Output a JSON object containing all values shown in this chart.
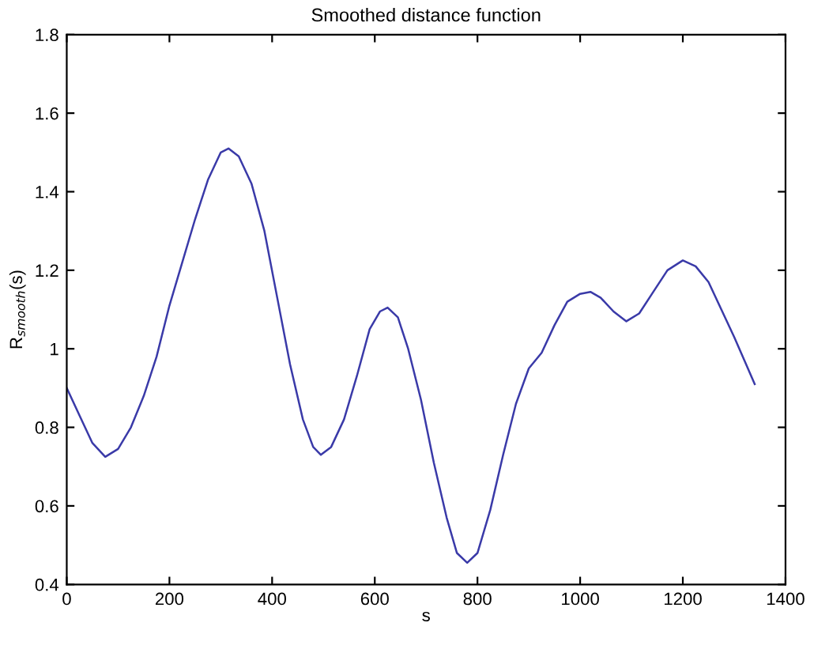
{
  "chart_data": {
    "type": "line",
    "title": "Smoothed distance function",
    "xlabel": "s",
    "ylabel": "R$_{smooth}$(s)",
    "x": [
      0,
      25,
      50,
      75,
      100,
      125,
      150,
      175,
      200,
      225,
      250,
      275,
      300,
      315,
      335,
      360,
      385,
      410,
      435,
      460,
      480,
      495,
      515,
      540,
      565,
      590,
      610,
      625,
      645,
      665,
      690,
      715,
      740,
      760,
      780,
      800,
      825,
      850,
      875,
      900,
      925,
      950,
      975,
      1000,
      1020,
      1040,
      1065,
      1090,
      1115,
      1140,
      1170,
      1200,
      1225,
      1250,
      1275,
      1300,
      1320,
      1340
    ],
    "series": [
      {
        "color": "#3a3aa8",
        "values": [
          0.9,
          0.83,
          0.76,
          0.725,
          0.745,
          0.8,
          0.88,
          0.98,
          1.11,
          1.22,
          1.33,
          1.43,
          1.5,
          1.51,
          1.49,
          1.42,
          1.3,
          1.13,
          0.96,
          0.82,
          0.75,
          0.73,
          0.75,
          0.82,
          0.93,
          1.05,
          1.095,
          1.105,
          1.08,
          1.0,
          0.87,
          0.71,
          0.57,
          0.48,
          0.455,
          0.48,
          0.59,
          0.73,
          0.86,
          0.95,
          0.99,
          1.06,
          1.12,
          1.14,
          1.145,
          1.13,
          1.095,
          1.07,
          1.09,
          1.14,
          1.2,
          1.225,
          1.21,
          1.17,
          1.1,
          1.03,
          0.97,
          0.91
        ]
      }
    ],
    "xlim": [
      0,
      1400
    ],
    "ylim": [
      0.4,
      1.8
    ],
    "xticks": [
      0,
      200,
      400,
      600,
      800,
      1000,
      1200,
      1400
    ],
    "yticks": [
      0.4,
      0.6,
      0.8,
      1,
      1.2,
      1.4,
      1.6,
      1.8
    ],
    "grid": false,
    "marker": "none",
    "line_style": "solid"
  }
}
